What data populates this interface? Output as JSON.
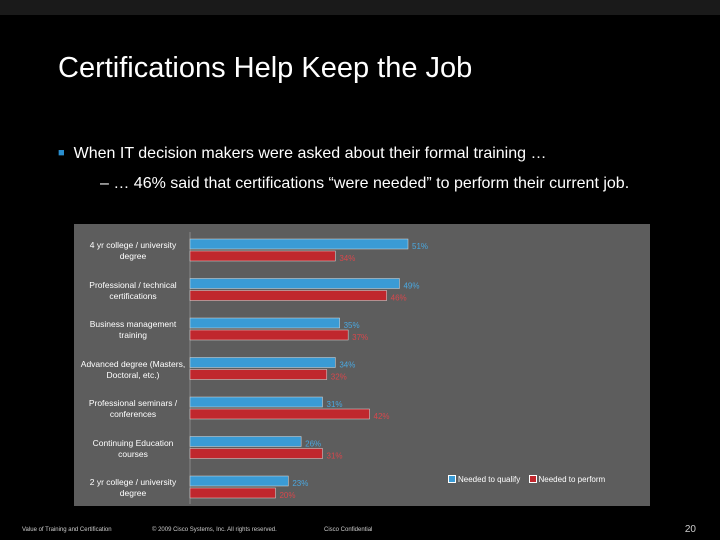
{
  "slide": {
    "title": "Certifications Help Keep the Job",
    "bullet": "When IT decision makers were asked about their formal training …",
    "sub_bullet": "– … 46% said that certifications “were needed” to perform their current job."
  },
  "chart_data": {
    "type": "bar",
    "orientation": "horizontal",
    "categories": [
      "4 yr college / university degree",
      "Professional / technical certifications",
      "Business management training",
      "Advanced degree (Masters, Doctoral, etc.)",
      "Professional seminars / conferences",
      "Continuing Education courses",
      "2 yr college / university degree"
    ],
    "series": [
      {
        "name": "Needed to qualify",
        "color": "#3a9bd5",
        "values": [
          51,
          49,
          35,
          34,
          31,
          26,
          23
        ]
      },
      {
        "name": "Needed to perform",
        "color": "#c0272d",
        "values": [
          34,
          46,
          37,
          32,
          42,
          31,
          20
        ]
      }
    ],
    "value_suffix": "%",
    "xlim": [
      0,
      60
    ],
    "legend_position": "bottom-right",
    "grid": false
  },
  "footer": {
    "left": "Value of Training and Certification",
    "copyright": "© 2009 Cisco Systems, Inc. All rights reserved.",
    "confidential": "Cisco Confidential",
    "page": "20"
  }
}
